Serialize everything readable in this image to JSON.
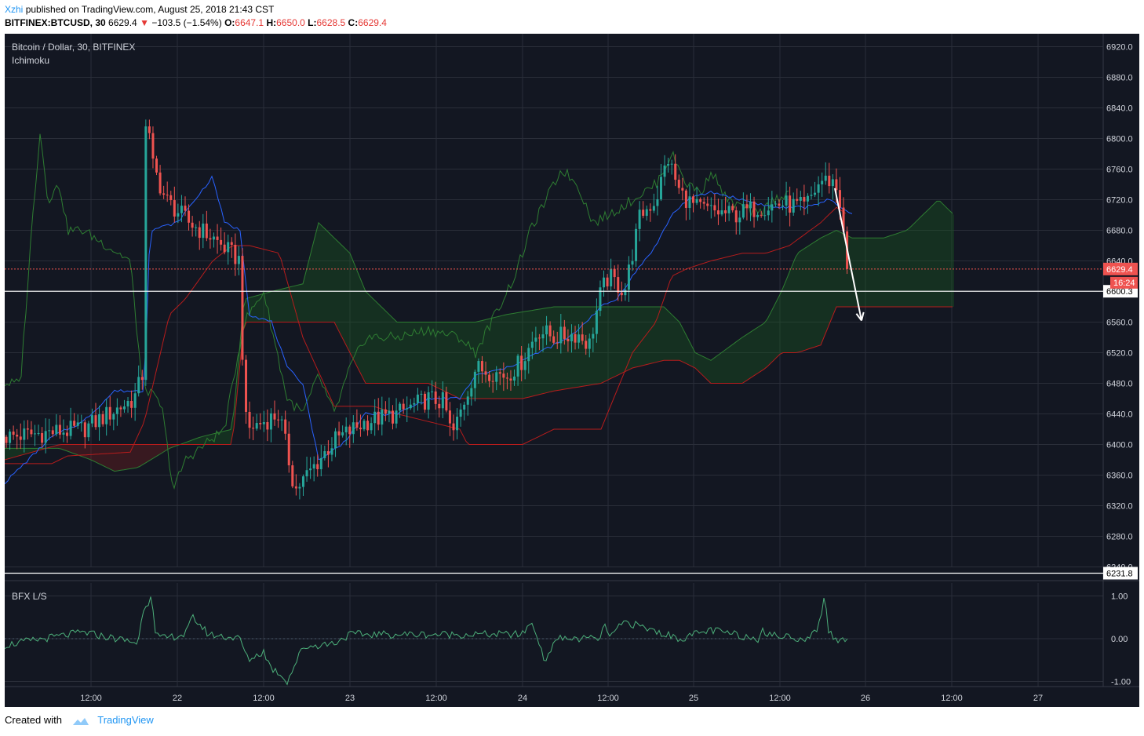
{
  "header": {
    "author": "Xzhi",
    "published_text": "published on TradingView.com, August 25, 2018 21:43 CST",
    "symbol": "BITFINEX:BTCUSD, 30",
    "last": "6629.4",
    "change": "−103.5 (−1.54%)",
    "open_label": "O:",
    "open": "6647.1",
    "high_label": "H:",
    "high": "6650.0",
    "low_label": "L:",
    "low": "6628.5",
    "close_label": "C:",
    "close": "6629.4"
  },
  "legend": {
    "title": "Bitcoin / Dollar, 30, BITFINEX",
    "indicator": "Ichimoku",
    "lower_indicator": "BFX L/S"
  },
  "footer": {
    "created_with": "Created with",
    "brand": "TradingView"
  },
  "colors": {
    "background": "#131722",
    "grid": "#2a2e39",
    "axis_text": "#d1d4dc",
    "candle_up": "#26a69a",
    "candle_down": "#ef5350",
    "tenkan": "#2962ff",
    "kijun": "#b71c1c",
    "chikou": "#2e7d32",
    "cloud_bull": "#1b5e20",
    "cloud_bear": "#7f1d1d",
    "last_price_line": "#ef5350",
    "marker_line": "#ffffff"
  },
  "chart_data": [
    {
      "type": "candlestick",
      "title": "Bitcoin / Dollar, 30, BITFINEX",
      "indicator": "Ichimoku",
      "x_ticks": [
        "12:00",
        "22",
        "12:00",
        "23",
        "12:00",
        "24",
        "12:00",
        "25",
        "12:00",
        "26",
        "12:00",
        "27"
      ],
      "ylim": [
        6240,
        6930
      ],
      "y_ticks": [
        6920.0,
        6880.0,
        6840.0,
        6800.0,
        6760.0,
        6720.0,
        6680.0,
        6640.0,
        6600.0,
        6560.0,
        6520.0,
        6480.0,
        6440.0,
        6400.0,
        6360.0,
        6320.0,
        6280.0,
        6240.0
      ],
      "last_price": 6629.4,
      "countdown": "16:24",
      "horizontal_lines": [
        6600.3,
        6231.8
      ],
      "drawings": [
        {
          "type": "arrow",
          "from": [
            6735,
            6735
          ],
          "to": [
            6562,
            6562
          ]
        }
      ],
      "series": [
        {
          "name": "Price",
          "anchors_x": [
            0,
            100,
            165,
            172,
            178,
            180,
            187,
            205,
            235,
            265,
            300,
            305,
            310,
            350,
            370,
            420,
            460,
            500,
            540,
            560,
            570,
            580,
            600,
            640,
            660,
            680,
            700,
            730,
            745,
            760,
            770,
            790,
            810,
            830,
            845,
            860,
            880,
            900,
            930,
            960,
            990,
            1020,
            1040,
            1055,
            1060,
            1065,
            1070,
            1075
          ],
          "anchors_y": [
            6410,
            6420,
            6460,
            6480,
            6500,
            6850,
            6770,
            6720,
            6690,
            6670,
            6640,
            6440,
            6420,
            6440,
            6340,
            6405,
            6430,
            6440,
            6460,
            6455,
            6410,
            6440,
            6500,
            6490,
            6510,
            6550,
            6540,
            6545,
            6530,
            6600,
            6620,
            6600,
            6700,
            6720,
            6775,
            6730,
            6710,
            6705,
            6700,
            6710,
            6715,
            6710,
            6745,
            6745,
            6735,
            6715,
            6660,
            6629.4
          ]
        },
        {
          "name": "Tenkan",
          "anchors_x": [
            0,
            60,
            100,
            140,
            178,
            185,
            220,
            265,
            280,
            300,
            312,
            340,
            360,
            380,
            400,
            430,
            460,
            500,
            540,
            580,
            600,
            640,
            680,
            720,
            760,
            780,
            800,
            830,
            850,
            870,
            900,
            940,
            980,
            1020,
            1050,
            1080
          ],
          "anchors_y": [
            6350,
            6410,
            6430,
            6470,
            6470,
            6680,
            6690,
            6750,
            6690,
            6680,
            6570,
            6560,
            6500,
            6480,
            6380,
            6400,
            6440,
            6440,
            6460,
            6460,
            6490,
            6500,
            6520,
            6540,
            6580,
            6590,
            6620,
            6660,
            6700,
            6720,
            6730,
            6720,
            6710,
            6710,
            6720,
            6700
          ]
        },
        {
          "name": "Kijun",
          "anchors_x": [
            0,
            60,
            80,
            160,
            178,
            210,
            230,
            265,
            290,
            312,
            350,
            380,
            420,
            470,
            500,
            540,
            580,
            590,
            620,
            660,
            700,
            760,
            800,
            830,
            850,
            870,
            900,
            940,
            970,
            1000,
            1040,
            1060,
            1075
          ],
          "anchors_y": [
            6375,
            6375,
            6385,
            6390,
            6430,
            6570,
            6590,
            6640,
            6660,
            6660,
            6650,
            6540,
            6450,
            6450,
            6440,
            6430,
            6420,
            6400,
            6400,
            6400,
            6420,
            6420,
            6520,
            6560,
            6620,
            6630,
            6640,
            6650,
            6650,
            6660,
            6690,
            6710,
            6700
          ]
        },
        {
          "name": "Chikou",
          "anchors_x": [
            0,
            20,
            35,
            45,
            55,
            70,
            80,
            100,
            130,
            160,
            175,
            200,
            215,
            230,
            280,
            305,
            330,
            360,
            380,
            400,
            420,
            440,
            460,
            500,
            540,
            580,
            600,
            630,
            650,
            670,
            690,
            710,
            730,
            750,
            770,
            800,
            830,
            850,
            870,
            890,
            900,
            920,
            940,
            960,
            980,
            1000
          ],
          "anchors_y": [
            6480,
            6480,
            6690,
            6810,
            6720,
            6740,
            6680,
            6680,
            6660,
            6640,
            6480,
            6450,
            6340,
            6380,
            6420,
            6560,
            6600,
            6460,
            6440,
            6490,
            6440,
            6500,
            6540,
            6540,
            6550,
            6540,
            6520,
            6580,
            6620,
            6680,
            6720,
            6760,
            6740,
            6690,
            6700,
            6720,
            6740,
            6780,
            6740,
            6730,
            6760,
            6720,
            6710,
            6700,
            6720,
            6730
          ]
        },
        {
          "name": "Span A",
          "anchors_x": [
            0,
            70,
            110,
            140,
            170,
            210,
            250,
            290,
            305,
            340,
            380,
            400,
            420,
            440,
            460,
            500,
            540,
            600,
            640,
            700,
            760,
            800,
            840,
            860,
            880,
            900,
            940,
            970,
            990,
            1010,
            1040,
            1060,
            1080,
            1120,
            1150,
            1170,
            1190,
            1210
          ],
          "anchors_y": [
            6395,
            6395,
            6380,
            6365,
            6370,
            6395,
            6410,
            6420,
            6590,
            6600,
            6610,
            6690,
            6670,
            6650,
            6600,
            6560,
            6560,
            6560,
            6570,
            6580,
            6580,
            6580,
            6580,
            6560,
            6520,
            6510,
            6540,
            6560,
            6600,
            6650,
            6670,
            6680,
            6670,
            6670,
            6680,
            6700,
            6720,
            6700
          ]
        },
        {
          "name": "Span B",
          "anchors_x": [
            0,
            70,
            110,
            170,
            210,
            250,
            290,
            305,
            340,
            380,
            420,
            460,
            500,
            540,
            580,
            620,
            660,
            700,
            760,
            800,
            840,
            860,
            880,
            900,
            940,
            970,
            990,
            1010,
            1040,
            1060,
            1080,
            1120,
            1150,
            1170,
            1190,
            1210
          ],
          "anchors_y": [
            6380,
            6400,
            6400,
            6400,
            6400,
            6400,
            6400,
            6560,
            6560,
            6560,
            6560,
            6480,
            6480,
            6480,
            6460,
            6460,
            6460,
            6470,
            6480,
            6500,
            6510,
            6510,
            6500,
            6480,
            6480,
            6500,
            6520,
            6520,
            6530,
            6580,
            6580,
            6580,
            6580,
            6580,
            6580,
            6580
          ]
        }
      ]
    },
    {
      "type": "line",
      "title": "BFX L/S",
      "ylim": [
        -1.0,
        1.0
      ],
      "y_ticks": [
        1.0,
        0.0,
        -1.0
      ],
      "series": [
        {
          "name": "BFX L/S",
          "anchors_x": [
            0,
            100,
            170,
            178,
            182,
            187,
            192,
            200,
            230,
            240,
            260,
            300,
            310,
            330,
            340,
            350,
            360,
            370,
            380,
            420,
            440,
            540,
            660,
            670,
            680,
            690,
            700,
            760,
            765,
            770,
            790,
            860,
            900,
            960,
            965,
            970,
            1020,
            1030,
            1040,
            1045,
            1050,
            1060,
            1075
          ],
          "anchors_y": [
            -0.15,
            0.15,
            -0.1,
            0.85,
            0.75,
            1.15,
            0.1,
            0.0,
            0.1,
            0.5,
            0.1,
            0.0,
            -0.5,
            -0.3,
            -0.7,
            -0.8,
            -1.0,
            -0.6,
            -0.2,
            -0.1,
            0.1,
            0.1,
            0.1,
            0.4,
            0.0,
            -0.6,
            0.0,
            0.0,
            0.4,
            0.0,
            0.4,
            0.0,
            0.2,
            0.0,
            0.3,
            0.1,
            0.0,
            0.1,
            0.4,
            1.05,
            0.2,
            -0.05,
            0.0
          ]
        }
      ]
    }
  ]
}
